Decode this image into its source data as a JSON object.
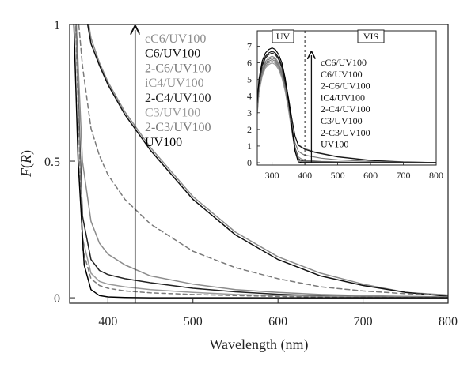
{
  "chart_data": [
    {
      "type": "line",
      "xlabel": "Wavelength (nm)",
      "ylabel_main": "F",
      "ylabel_var": "R",
      "xlim": [
        355,
        800
      ],
      "ylim": [
        -0.02,
        1.0
      ],
      "xticks": [
        400,
        500,
        600,
        700,
        800
      ],
      "yticks": [
        0,
        0.5,
        1
      ],
      "ytick_labels": [
        "0",
        "0.5",
        "1"
      ],
      "arrow_x": 432,
      "legend": [
        "cC6/UV100",
        "C6/UV100",
        "2-C6/UV100",
        "iC4/UV100",
        "2-C4/UV100",
        "C3/UV100",
        "2-C3/UV100",
        "UV100"
      ],
      "series": [
        {
          "name": "cC6/UV100",
          "color": "#8c8c8c",
          "dash": "",
          "x": [
            365,
            375,
            380,
            390,
            400,
            420,
            450,
            500,
            550,
            600,
            650,
            700,
            750,
            800
          ],
          "y": [
            1.4,
            1.05,
            0.95,
            0.86,
            0.79,
            0.68,
            0.55,
            0.37,
            0.24,
            0.15,
            0.09,
            0.05,
            0.02,
            0.01
          ]
        },
        {
          "name": "C6/UV100",
          "color": "#111111",
          "dash": "",
          "x": [
            365,
            375,
            380,
            390,
            400,
            420,
            450,
            500,
            550,
            600,
            650,
            700,
            750,
            800
          ],
          "y": [
            1.35,
            1.02,
            0.93,
            0.85,
            0.78,
            0.67,
            0.54,
            0.36,
            0.23,
            0.14,
            0.08,
            0.045,
            0.02,
            0.005
          ]
        },
        {
          "name": "2-C6/UV100",
          "color": "#7a7a7a",
          "dash": "6,4",
          "x": [
            360,
            370,
            380,
            390,
            400,
            420,
            450,
            500,
            550,
            600,
            650,
            700,
            750,
            800
          ],
          "y": [
            1.2,
            0.85,
            0.62,
            0.52,
            0.45,
            0.36,
            0.27,
            0.17,
            0.11,
            0.07,
            0.04,
            0.025,
            0.015,
            0.01
          ]
        },
        {
          "name": "iC4/UV100",
          "color": "#8c8c8c",
          "dash": "",
          "x": [
            360,
            370,
            380,
            390,
            400,
            420,
            450,
            500,
            550,
            600,
            650,
            700,
            750,
            800
          ],
          "y": [
            1.2,
            0.5,
            0.28,
            0.2,
            0.16,
            0.12,
            0.08,
            0.05,
            0.03,
            0.02,
            0.012,
            0.008,
            0.005,
            0.003
          ]
        },
        {
          "name": "2-C4/UV100",
          "color": "#222222",
          "dash": "",
          "x": [
            360,
            370,
            380,
            390,
            400,
            420,
            450,
            500,
            550,
            600,
            650,
            700,
            750,
            800
          ],
          "y": [
            1.2,
            0.3,
            0.14,
            0.1,
            0.085,
            0.07,
            0.055,
            0.035,
            0.022,
            0.013,
            0.007,
            0.004,
            0.002,
            0.001
          ]
        },
        {
          "name": "C3/UV100",
          "color": "#9a9a9a",
          "dash": "",
          "x": [
            360,
            370,
            380,
            390,
            400,
            420,
            450,
            500,
            550,
            600,
            650,
            700,
            750,
            800
          ],
          "y": [
            1.2,
            0.22,
            0.09,
            0.06,
            0.05,
            0.04,
            0.03,
            0.02,
            0.012,
            0.008,
            0.005,
            0.003,
            0.002,
            0.001
          ]
        },
        {
          "name": "2-C3/UV100",
          "color": "#7a7a7a",
          "dash": "5,4",
          "x": [
            360,
            370,
            380,
            390,
            400,
            420,
            450,
            500,
            550,
            600,
            650,
            700,
            750,
            800
          ],
          "y": [
            1.2,
            0.18,
            0.07,
            0.045,
            0.035,
            0.025,
            0.018,
            0.012,
            0.008,
            0.005,
            0.003,
            0.002,
            0.001,
            0.001
          ]
        },
        {
          "name": "UV100",
          "color": "#000000",
          "dash": "",
          "x": [
            358,
            365,
            372,
            380,
            390,
            400,
            420,
            450,
            500,
            600,
            700,
            800
          ],
          "y": [
            1.2,
            0.5,
            0.12,
            0.03,
            0.008,
            0.003,
            0.001,
            0.0,
            0.0,
            0.0,
            0.0,
            0.0
          ]
        }
      ]
    },
    {
      "type": "line",
      "xlim": [
        255,
        800
      ],
      "ylim": [
        0,
        7.5
      ],
      "xticks": [
        300,
        400,
        500,
        600,
        700,
        800
      ],
      "yticks": [
        0,
        1,
        2,
        3,
        4,
        5,
        6,
        7
      ],
      "arrow_x": 420,
      "divider_x": 400,
      "regions": [
        "UV",
        "VIS"
      ],
      "legend": [
        "cC6/UV100",
        "C6/UV100",
        "2-C6/UV100",
        "iC4/UV100",
        "2-C4/UV100",
        "C3/UV100",
        "2-C3/UV100",
        "UV100"
      ],
      "series": [
        {
          "name": "cC6/UV100",
          "color": "#8c8c8c",
          "x": [
            255,
            260,
            270,
            280,
            290,
            300,
            310,
            320,
            330,
            340,
            350,
            360,
            370,
            380,
            390,
            400,
            430,
            500,
            600,
            700,
            800
          ],
          "y": [
            3.3,
            4.6,
            5.6,
            6.1,
            6.3,
            6.4,
            6.3,
            6.0,
            5.5,
            4.8,
            3.8,
            2.6,
            1.6,
            1.1,
            0.95,
            0.85,
            0.65,
            0.37,
            0.15,
            0.05,
            0.01
          ]
        },
        {
          "name": "C6/UV100",
          "color": "#111111",
          "x": [
            255,
            260,
            270,
            280,
            290,
            300,
            310,
            320,
            330,
            340,
            350,
            360,
            370,
            380,
            390,
            400,
            430,
            500,
            600,
            700,
            800
          ],
          "y": [
            3.4,
            4.8,
            5.9,
            6.4,
            6.6,
            6.7,
            6.6,
            6.3,
            5.8,
            5.0,
            3.9,
            2.7,
            1.6,
            1.05,
            0.92,
            0.8,
            0.62,
            0.35,
            0.14,
            0.045,
            0.005
          ]
        },
        {
          "name": "2-C6/UV100",
          "color": "#7a7a7a",
          "x": [
            255,
            260,
            270,
            280,
            290,
            300,
            310,
            320,
            330,
            340,
            350,
            360,
            370,
            380,
            390,
            400,
            450,
            500,
            600,
            700,
            800
          ],
          "y": [
            3.2,
            4.5,
            5.5,
            6.0,
            6.2,
            6.3,
            6.2,
            5.9,
            5.4,
            4.6,
            3.5,
            2.3,
            1.2,
            0.7,
            0.55,
            0.45,
            0.27,
            0.17,
            0.07,
            0.025,
            0.01
          ]
        },
        {
          "name": "iC4/UV100",
          "color": "#8c8c8c",
          "x": [
            255,
            260,
            270,
            280,
            290,
            300,
            310,
            320,
            330,
            340,
            350,
            360,
            370,
            380,
            390,
            400,
            450,
            500,
            600,
            800
          ],
          "y": [
            3.0,
            4.3,
            5.3,
            5.8,
            6.0,
            6.1,
            6.0,
            5.7,
            5.2,
            4.4,
            3.3,
            2.0,
            0.9,
            0.35,
            0.22,
            0.16,
            0.08,
            0.05,
            0.02,
            0.003
          ]
        },
        {
          "name": "2-C4/UV100",
          "color": "#222222",
          "x": [
            255,
            260,
            270,
            280,
            290,
            300,
            310,
            320,
            330,
            340,
            350,
            360,
            370,
            380,
            390,
            400,
            450,
            500,
            600,
            800
          ],
          "y": [
            3.3,
            4.7,
            5.8,
            6.3,
            6.5,
            6.6,
            6.5,
            6.2,
            5.7,
            4.8,
            3.6,
            2.2,
            0.9,
            0.25,
            0.12,
            0.09,
            0.05,
            0.035,
            0.013,
            0.001
          ]
        },
        {
          "name": "C3/UV100",
          "color": "#9a9a9a",
          "x": [
            255,
            260,
            270,
            280,
            290,
            300,
            310,
            320,
            330,
            340,
            350,
            360,
            370,
            380,
            390,
            400,
            450,
            500,
            600,
            800
          ],
          "y": [
            2.9,
            4.2,
            5.2,
            5.7,
            5.9,
            6.0,
            5.9,
            5.6,
            5.1,
            4.3,
            3.2,
            1.9,
            0.8,
            0.18,
            0.07,
            0.05,
            0.03,
            0.02,
            0.008,
            0.001
          ]
        },
        {
          "name": "2-C3/UV100",
          "color": "#7a7a7a",
          "x": [
            255,
            260,
            270,
            280,
            290,
            300,
            310,
            320,
            330,
            340,
            350,
            360,
            370,
            380,
            390,
            400,
            450,
            500,
            600,
            800
          ],
          "y": [
            3.1,
            4.4,
            5.4,
            5.9,
            6.1,
            6.2,
            6.1,
            5.8,
            5.3,
            4.5,
            3.4,
            2.0,
            0.8,
            0.15,
            0.05,
            0.035,
            0.018,
            0.012,
            0.005,
            0.001
          ]
        },
        {
          "name": "UV100",
          "color": "#000000",
          "x": [
            255,
            260,
            270,
            280,
            290,
            300,
            310,
            320,
            330,
            340,
            350,
            360,
            370,
            380,
            390,
            400,
            450,
            600,
            800
          ],
          "y": [
            3.6,
            5.0,
            6.1,
            6.6,
            6.8,
            6.9,
            6.8,
            6.5,
            6.0,
            5.1,
            3.8,
            2.2,
            0.7,
            0.05,
            0.008,
            0.003,
            0.0,
            0.0,
            0.0
          ]
        }
      ]
    }
  ]
}
